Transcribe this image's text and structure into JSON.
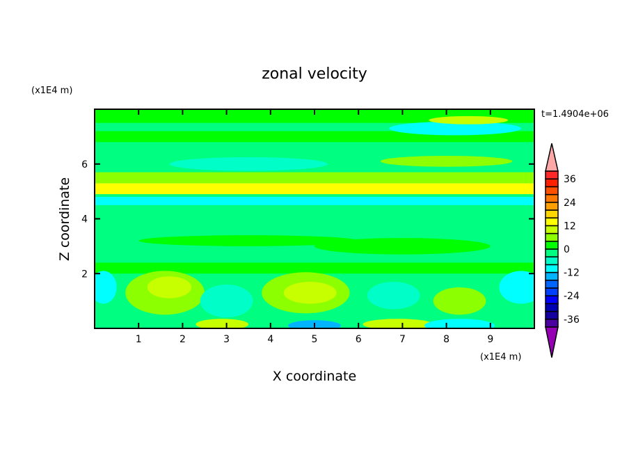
{
  "chart_data": {
    "type": "heatmap",
    "subtype": "filled-contour",
    "title": "zonal velocity",
    "xlabel": "X coordinate",
    "ylabel": "Z coordinate",
    "x_scale_label": "(x1E4 m)",
    "y_scale_label": "(x1E4 m)",
    "time_label": "t=1.4904e+06",
    "xlim": [
      0,
      10
    ],
    "ylim": [
      0,
      8
    ],
    "x_ticks": [
      1,
      2,
      3,
      4,
      5,
      6,
      7,
      8,
      9
    ],
    "y_ticks": [
      2,
      4,
      6
    ],
    "colorbar": {
      "levels": [
        -40,
        -36,
        -32,
        -28,
        -24,
        -20,
        -16,
        -12,
        -8,
        -4,
        0,
        4,
        8,
        12,
        16,
        20,
        24,
        28,
        32,
        36,
        40
      ],
      "tick_labels": [
        "36",
        "24",
        "12",
        "0",
        "-12",
        "-24",
        "-36"
      ],
      "tick_values": [
        36,
        24,
        12,
        0,
        -12,
        -24,
        -36
      ],
      "colors": [
        "#4b00a0",
        "#1400a0",
        "#0000b4",
        "#0000ff",
        "#0040ff",
        "#0064ff",
        "#00b4ff",
        "#00ffff",
        "#00ffc8",
        "#00ff80",
        "#00ff00",
        "#8cff00",
        "#c8ff00",
        "#ffff00",
        "#ffd700",
        "#ffa000",
        "#ff7800",
        "#ff5000",
        "#ff2000",
        "#ff2828"
      ],
      "over_color": "#ffa8a8",
      "under_color": "#9600b4"
    },
    "background_value": -2,
    "features": [
      {
        "x": [
          0,
          10
        ],
        "z": [
          4.9,
          5.3
        ],
        "value": 14,
        "kind": "band"
      },
      {
        "x": [
          0,
          10
        ],
        "z": [
          5.3,
          5.7
        ],
        "value": 6,
        "kind": "band"
      },
      {
        "x": [
          0,
          10
        ],
        "z": [
          4.5,
          4.8
        ],
        "value": -10,
        "kind": "band"
      },
      {
        "x": [
          0,
          10
        ],
        "z": [
          2.0,
          2.4
        ],
        "value": 2,
        "kind": "band"
      },
      {
        "x": [
          0,
          10
        ],
        "z": [
          6.8,
          7.2
        ],
        "value": 2,
        "kind": "band"
      },
      {
        "x": [
          0,
          10
        ],
        "z": [
          7.5,
          8.0
        ],
        "value": 2,
        "kind": "band"
      },
      {
        "cx": 1.6,
        "cz": 1.3,
        "rx": 0.9,
        "rz": 0.8,
        "value": 6
      },
      {
        "cx": 1.7,
        "cz": 1.5,
        "rx": 0.5,
        "rz": 0.4,
        "value": 10
      },
      {
        "cx": 4.8,
        "cz": 1.3,
        "rx": 1.0,
        "rz": 0.75,
        "value": 6
      },
      {
        "cx": 4.9,
        "cz": 1.3,
        "rx": 0.6,
        "rz": 0.4,
        "value": 10
      },
      {
        "cx": 8.3,
        "cz": 1.0,
        "rx": 0.6,
        "rz": 0.5,
        "value": 6
      },
      {
        "cx": 0.2,
        "cz": 1.5,
        "rx": 0.3,
        "rz": 0.6,
        "value": -10
      },
      {
        "cx": 9.7,
        "cz": 1.5,
        "rx": 0.5,
        "rz": 0.6,
        "value": -10
      },
      {
        "cx": 3.0,
        "cz": 1.0,
        "rx": 0.6,
        "rz": 0.6,
        "value": -6
      },
      {
        "cx": 6.8,
        "cz": 1.2,
        "rx": 0.6,
        "rz": 0.5,
        "value": -6
      },
      {
        "cx": 2.9,
        "cz": 0.15,
        "rx": 0.6,
        "rz": 0.2,
        "value": 8
      },
      {
        "cx": 6.9,
        "cz": 0.15,
        "rx": 0.8,
        "rz": 0.2,
        "value": 8
      },
      {
        "cx": 5.0,
        "cz": 0.1,
        "rx": 0.6,
        "rz": 0.2,
        "value": -14
      },
      {
        "cx": 8.3,
        "cz": 0.1,
        "rx": 0.8,
        "rz": 0.25,
        "value": -10
      },
      {
        "cx": 8.2,
        "cz": 7.3,
        "rx": 1.5,
        "rz": 0.25,
        "value": -10
      },
      {
        "cx": 8.5,
        "cz": 7.6,
        "rx": 0.9,
        "rz": 0.15,
        "value": 8
      },
      {
        "cx": 3.5,
        "cz": 6.0,
        "rx": 1.8,
        "rz": 0.25,
        "value": -6
      },
      {
        "cx": 8.0,
        "cz": 6.1,
        "rx": 1.5,
        "rz": 0.2,
        "value": 6
      },
      {
        "cx": 3.5,
        "cz": 3.2,
        "rx": 2.5,
        "rz": 0.2,
        "value": 2
      },
      {
        "cx": 7.0,
        "cz": 3.0,
        "rx": 2.0,
        "rz": 0.3,
        "value": 2
      }
    ]
  }
}
